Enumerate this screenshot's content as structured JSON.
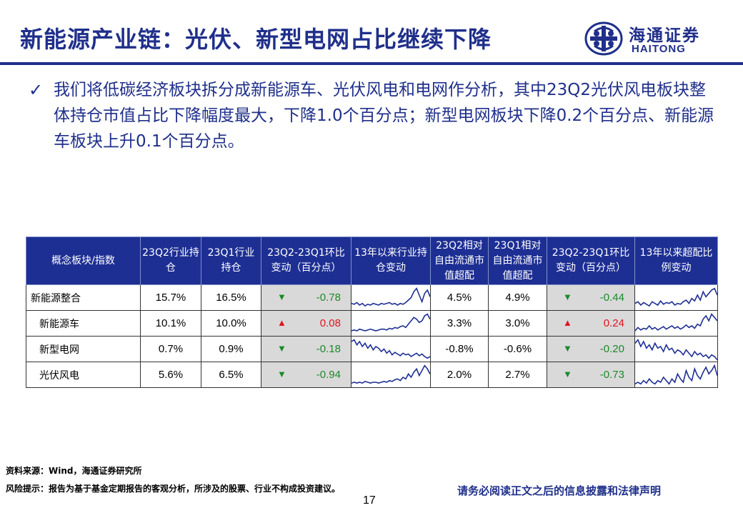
{
  "title": "新能源产业链：光伏、新型电网占比继续下降",
  "logo": {
    "cn": "海通证券",
    "en": "HAITONG"
  },
  "bullet": {
    "icon": "check-icon",
    "text": "我们将低碳经济板块拆分成新能源车、光伏风电和电网作分析，其中23Q2光伏风电板块整体持仓市值占比下降幅度最大，下降1.0个百分点；新型电网板块下降0.2个百分点、新能源车板块上升0.1个百分点。"
  },
  "table": {
    "headers": [
      "概念板块/指数",
      "23Q2行业持仓",
      "23Q1行业持仓",
      "23Q2-23Q1环比变动（百分点）",
      "13年以来行业持仓变动",
      "23Q2相对自由流通市值超配",
      "23Q1相对自由流通市值超配",
      "23Q2-23Q1环比变动（百分点）",
      "13年以来超配比例变动"
    ],
    "rows": [
      {
        "name": "新能源整合",
        "q2": "15.7%",
        "q1": "16.5%",
        "chg_dir": "down",
        "chg_arrow": "▼",
        "chg": "-0.78",
        "ow_q2": "4.5%",
        "ow_q1": "4.9%",
        "ow_dir": "down",
        "ow_arrow": "▼",
        "ow_chg": "-0.44",
        "spark1": [
          22,
          23,
          21,
          24,
          22,
          25,
          23,
          24,
          22,
          23,
          24,
          22,
          23,
          22,
          21,
          23,
          22,
          24,
          22,
          23,
          21,
          18,
          15,
          8,
          4,
          12,
          20,
          10,
          6,
          14
        ],
        "spark2": [
          22,
          20,
          24,
          21,
          23,
          25,
          20,
          22,
          24,
          19,
          23,
          21,
          22,
          20,
          24,
          22,
          23,
          20,
          18,
          22,
          16,
          19,
          12,
          18,
          8,
          14,
          10,
          6,
          4,
          12
        ]
      },
      {
        "name": "新能源车",
        "q2": "10.1%",
        "q1": "10.0%",
        "chg_dir": "up",
        "chg_arrow": "▲",
        "chg": "0.08",
        "ow_q2": "3.3%",
        "ow_q1": "3.0%",
        "ow_dir": "up",
        "ow_arrow": "▲",
        "ow_chg": "0.24",
        "spark1": [
          24,
          23,
          24,
          22,
          23,
          24,
          23,
          22,
          23,
          24,
          23,
          22,
          22,
          23,
          21,
          22,
          20,
          21,
          19,
          18,
          20,
          16,
          12,
          8,
          10,
          14,
          12,
          6,
          4,
          10
        ],
        "spark2": [
          24,
          20,
          23,
          21,
          22,
          18,
          22,
          20,
          23,
          21,
          19,
          22,
          20,
          18,
          21,
          19,
          22,
          20,
          17,
          20,
          18,
          21,
          16,
          18,
          10,
          6,
          12,
          4,
          8,
          12
        ]
      },
      {
        "name": "新型电网",
        "q2": "0.7%",
        "q1": "0.9%",
        "chg_dir": "down",
        "chg_arrow": "▼",
        "chg": "-0.18",
        "ow_q2": "-0.8%",
        "ow_q1": "-0.6%",
        "ow_dir": "down",
        "ow_arrow": "▼",
        "ow_chg": "-0.20",
        "spark1": [
          6,
          4,
          10,
          6,
          12,
          8,
          14,
          10,
          16,
          12,
          14,
          18,
          15,
          20,
          17,
          22,
          19,
          21,
          23,
          20,
          22,
          21,
          24,
          22,
          20,
          23,
          21,
          24,
          26,
          24
        ],
        "spark2": [
          8,
          4,
          12,
          6,
          14,
          10,
          16,
          8,
          14,
          12,
          18,
          10,
          16,
          14,
          20,
          16,
          18,
          22,
          16,
          20,
          24,
          18,
          22,
          20,
          24,
          22,
          26,
          22,
          24,
          28
        ]
      },
      {
        "name": "光伏风电",
        "q2": "5.6%",
        "q1": "6.5%",
        "chg_dir": "down",
        "chg_arrow": "▼",
        "chg": "-0.94",
        "ow_q2": "2.0%",
        "ow_q1": "2.7%",
        "ow_dir": "down",
        "ow_arrow": "▼",
        "ow_chg": "-0.73",
        "spark1": [
          25,
          24,
          25,
          24,
          25,
          23,
          24,
          25,
          24,
          24,
          25,
          24,
          23,
          24,
          22,
          23,
          21,
          20,
          22,
          18,
          20,
          14,
          18,
          12,
          8,
          16,
          10,
          4,
          8,
          14
        ],
        "spark2": [
          26,
          24,
          26,
          22,
          25,
          20,
          24,
          26,
          22,
          24,
          18,
          22,
          26,
          20,
          24,
          14,
          20,
          24,
          10,
          18,
          22,
          8,
          16,
          20,
          12,
          6,
          14,
          10,
          4,
          16
        ]
      }
    ]
  },
  "footer": {
    "source": "资料来源：Wind，海通证券研究所",
    "risk": "风险提示：报告为基于基金定期报告的客观分析，所涉及的股票、行业不构成投资建议。",
    "page": "17",
    "disclaimer": "请务必阅读正文之后的信息披露和法律声明"
  },
  "colors": {
    "brand": "#1f2f8a",
    "header_bg": "#1e2f94",
    "down": "#1a8a2a",
    "up": "#e0141e",
    "change_bg": "#d9d9d9"
  }
}
